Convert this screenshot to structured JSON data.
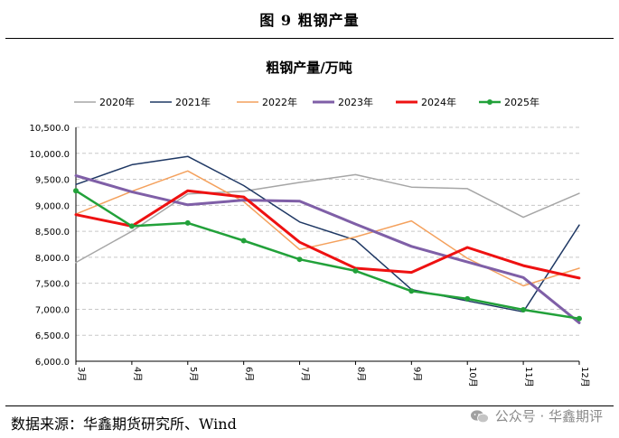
{
  "figure": {
    "title": "图 9  粗钢产量",
    "source": "数据来源：华鑫期货研究所、Wind",
    "watermark": "公众号 · 华鑫期评",
    "watermark_icon": "wechat-icon"
  },
  "chart_data": {
    "type": "line",
    "title": "粗钢产量/万吨",
    "xlabel": "",
    "ylabel": "",
    "categories": [
      "3月",
      "4月",
      "5月",
      "6月",
      "7月",
      "8月",
      "9月",
      "10月",
      "11月",
      "12月"
    ],
    "ylim": [
      6000,
      10500
    ],
    "yticks": [
      6000,
      6500,
      7000,
      7500,
      8000,
      8500,
      9000,
      9500,
      10000,
      10500
    ],
    "ytick_labels": [
      "6,000.0",
      "6,500.0",
      "7,000.0",
      "7,500.0",
      "8,000.0",
      "8,500.0",
      "9,000.0",
      "9,500.0",
      "10,000.0",
      "10,500.0"
    ],
    "grid": true,
    "legend_position": "top",
    "series": [
      {
        "name": "2020年",
        "color": "#a6a6a6",
        "width": 1.5,
        "markers": false,
        "values": [
          7900,
          8500,
          9220,
          9270,
          9440,
          9590,
          9350,
          9320,
          8770,
          9230
        ]
      },
      {
        "name": "2021年",
        "color": "#1f3864",
        "width": 1.5,
        "markers": false,
        "values": [
          9400,
          9780,
          9940,
          9380,
          8680,
          8330,
          7380,
          7160,
          6950,
          8620
        ]
      },
      {
        "name": "2022年",
        "color": "#f4a15d",
        "width": 1.5,
        "markers": false,
        "values": [
          8830,
          9270,
          9660,
          9070,
          8150,
          8390,
          8700,
          7980,
          7450,
          7790
        ]
      },
      {
        "name": "2023年",
        "color": "#7f5fa7",
        "width": 3,
        "markers": false,
        "values": [
          9570,
          9260,
          9010,
          9100,
          9080,
          8640,
          8210,
          7910,
          7610,
          6740
        ]
      },
      {
        "name": "2024年",
        "color": "#ee1111",
        "width": 3,
        "markers": false,
        "values": [
          8820,
          8600,
          9280,
          9160,
          8290,
          7790,
          7710,
          8190,
          7840,
          7600
        ]
      },
      {
        "name": "2025年",
        "color": "#22a13a",
        "width": 2.5,
        "markers": true,
        "values": [
          9280,
          8600,
          8660,
          8320,
          7960,
          7740,
          7350,
          7200,
          6990,
          6820
        ]
      }
    ]
  }
}
